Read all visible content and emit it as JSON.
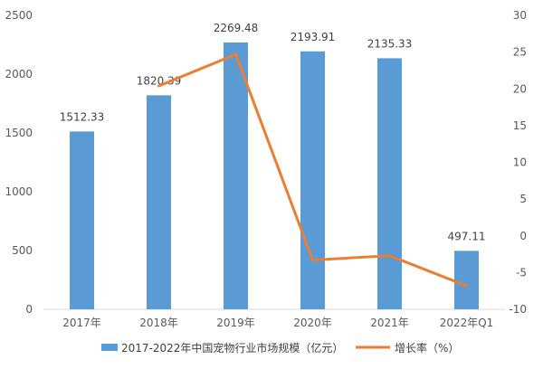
{
  "chart_data": {
    "type": "bar",
    "categories": [
      "2017年",
      "2018年",
      "2019年",
      "2020年",
      "2021年",
      "2022年Q1"
    ],
    "series": [
      {
        "name": "2017-2022年中国宠物行业市场规模（亿元）",
        "type": "bar",
        "axis": "left",
        "values": [
          1512.33,
          1820.39,
          2269.48,
          2193.91,
          2135.33,
          497.11
        ],
        "data_labels": [
          "1512.33",
          "1820.39",
          "2269.48",
          "2193.91",
          "2135.33",
          "497.11"
        ],
        "color": "#5B9BD5"
      },
      {
        "name": "增长率（%）",
        "type": "line",
        "axis": "right",
        "values": [
          null,
          20.4,
          24.7,
          -3.3,
          -2.7,
          -6.8
        ],
        "color": "#ED7D31"
      }
    ],
    "left_axis": {
      "ylim": [
        0,
        2500
      ],
      "ticks": [
        "0",
        "500",
        "1000",
        "1500",
        "2000",
        "2500"
      ]
    },
    "right_axis": {
      "ylim": [
        -10,
        30
      ],
      "ticks": [
        "-10",
        "-5",
        "0",
        "5",
        "10",
        "15",
        "20",
        "25",
        "30"
      ]
    },
    "grid": false,
    "legend_position": "bottom"
  }
}
